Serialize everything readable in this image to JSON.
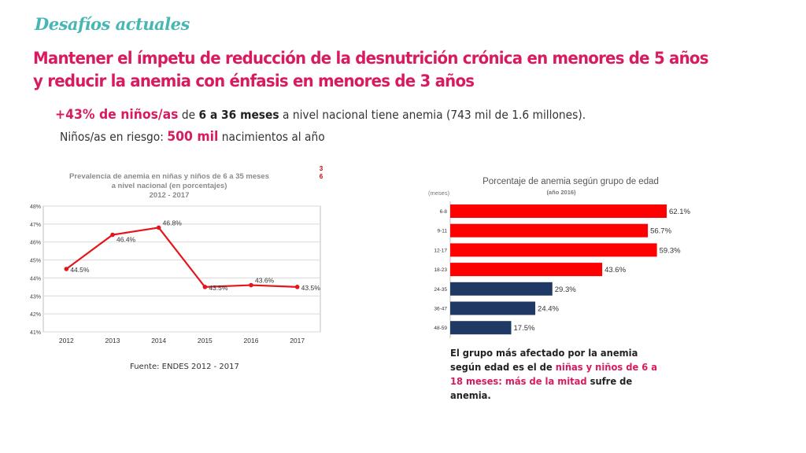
{
  "header": {
    "kicker": "Desafíos actuales",
    "headline": "Mantener el ímpetu de reducción de la desnutrición crónica en menores de 5 años y reducir la anemia con énfasis en menores de 3 años"
  },
  "stat_line": {
    "highlight": "+43% de niños/as",
    "t1": " de ",
    "bold": "6 a 36 meses",
    "t2": " a nivel nacional tiene anemia (743 mil de 1.6 millones)."
  },
  "risk_line": {
    "prefix": "Niños/as en riesgo: ",
    "highlight": "500 mil",
    "suffix": " nacimientos al año"
  },
  "page_marker": [
    "3",
    "6"
  ],
  "source": "Fuente: ENDES 2012 - 2017",
  "caption": {
    "t1": "El grupo más afectado por la anemia según edad es el de ",
    "highlight": "niñas y niños de 6 a 18 meses: más de la mitad",
    "t2": " sufre de anemia."
  },
  "chart_data": [
    {
      "type": "line",
      "title": [
        "Prevalencia de anemia en niñas y niños de 6 a 35 meses",
        "a nivel nacional (en porcentajes)",
        "2012 - 2017"
      ],
      "x": [
        "2012",
        "2013",
        "2014",
        "2015",
        "2016",
        "2017"
      ],
      "series": [
        {
          "values": [
            44.5,
            46.4,
            46.8,
            43.5,
            43.6,
            43.5
          ],
          "color": "#e3161c"
        }
      ],
      "ylim": [
        41,
        48
      ],
      "yticks": [
        41,
        42,
        43,
        44,
        45,
        46,
        47,
        48
      ],
      "grid": true
    },
    {
      "type": "bar",
      "orientation": "horizontal",
      "title": "Porcentaje de anemia según grupo de edad",
      "subtitle": "(año 2016)",
      "ylabel": "(meses)",
      "categories": [
        "6-8",
        "9-11",
        "12-17",
        "18-23",
        "24-35",
        "36-47",
        "48-59"
      ],
      "values": [
        62.1,
        56.7,
        59.3,
        43.6,
        29.3,
        24.4,
        17.5
      ],
      "colors": [
        "#ff0000",
        "#ff0000",
        "#ff0000",
        "#ff0000",
        "#1f3864",
        "#1f3864",
        "#1f3864"
      ],
      "xlim": [
        0,
        70
      ]
    }
  ]
}
